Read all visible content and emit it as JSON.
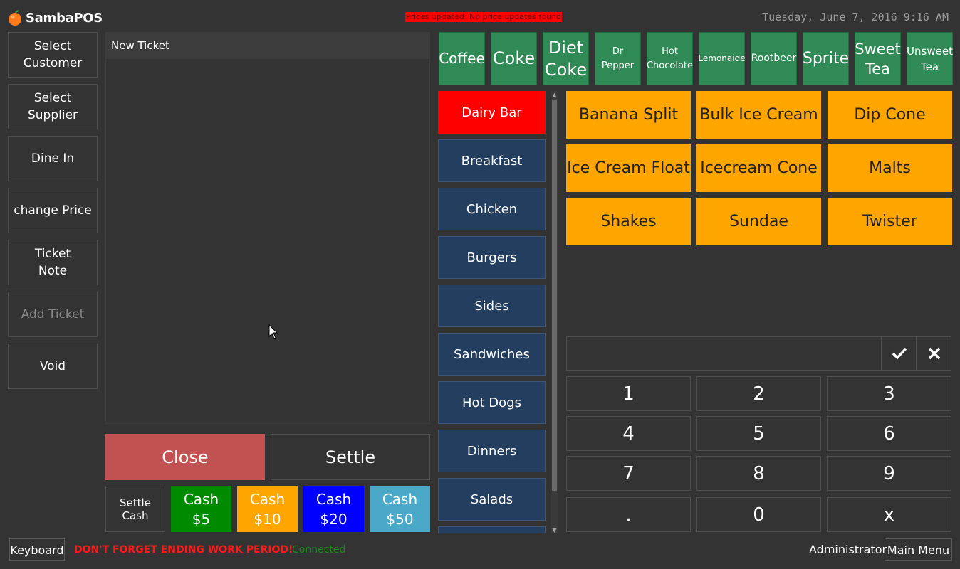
{
  "header": {
    "logo_text": "SambaPOS",
    "price_banner": "Prices updated: No price updates found",
    "clock": "Tuesday, June 7, 2016 9:16 AM"
  },
  "nav": [
    {
      "label": "Select\nCustomer"
    },
    {
      "label": "Select\nSupplier"
    },
    {
      "label": "Dine In"
    },
    {
      "label": "change Price"
    },
    {
      "label": "Ticket\nNote"
    },
    {
      "label": "Add Ticket"
    },
    {
      "label": "Void"
    }
  ],
  "ticket": {
    "header": "New Ticket",
    "close_label": "Close",
    "settle_label": "Settle"
  },
  "cash": {
    "settle_cash_label": "Settle Cash",
    "buttons": [
      {
        "label": "Cash\n$5",
        "color": "#008a00"
      },
      {
        "label": "Cash\n$10",
        "color": "#ffa500"
      },
      {
        "label": "Cash\n$20",
        "color": "#0000ff"
      },
      {
        "label": "Cash\n$50",
        "color": "#4aa8c8"
      }
    ]
  },
  "drinks": [
    {
      "label": "Coffee"
    },
    {
      "label": "Coke"
    },
    {
      "label": "Diet\nCoke"
    },
    {
      "label": "Dr Pepper"
    },
    {
      "label": "Hot\nChocolate"
    },
    {
      "label": "Lemonaide"
    },
    {
      "label": "Rootbeer"
    },
    {
      "label": "Sprite"
    },
    {
      "label": "Sweet\nTea"
    },
    {
      "label": "Unsweet\nTea"
    }
  ],
  "categories": [
    {
      "label": "Dairy Bar",
      "active": true
    },
    {
      "label": "Breakfast"
    },
    {
      "label": "Chicken"
    },
    {
      "label": "Burgers"
    },
    {
      "label": "Sides"
    },
    {
      "label": "Sandwiches"
    },
    {
      "label": "Hot Dogs"
    },
    {
      "label": "Dinners"
    },
    {
      "label": "Salads"
    }
  ],
  "products": [
    {
      "label": "Banana Split"
    },
    {
      "label": "Bulk Ice Cream"
    },
    {
      "label": "Dip Cone"
    },
    {
      "label": "Ice Cream Float"
    },
    {
      "label": "Icecream Cone"
    },
    {
      "label": "Malts"
    },
    {
      "label": "Shakes"
    },
    {
      "label": "Sundae"
    },
    {
      "label": "Twister"
    }
  ],
  "numpad": {
    "display_value": "",
    "keys": [
      "1",
      "2",
      "3",
      "4",
      "5",
      "6",
      "7",
      "8",
      "9",
      ".",
      "0",
      "x"
    ]
  },
  "status": {
    "keyboard_label": "Keyboard",
    "warning": "DON'T FORGET ENDING WORK PERIOD!",
    "connected": "Connected",
    "user": "Administrator",
    "main_menu_label": "Main Menu"
  },
  "colors": {
    "drink_green": "#2f8a55",
    "category_blue": "#233e5f",
    "category_active": "#ff0000",
    "product_orange": "#ffa500",
    "close_red": "#c25151"
  }
}
